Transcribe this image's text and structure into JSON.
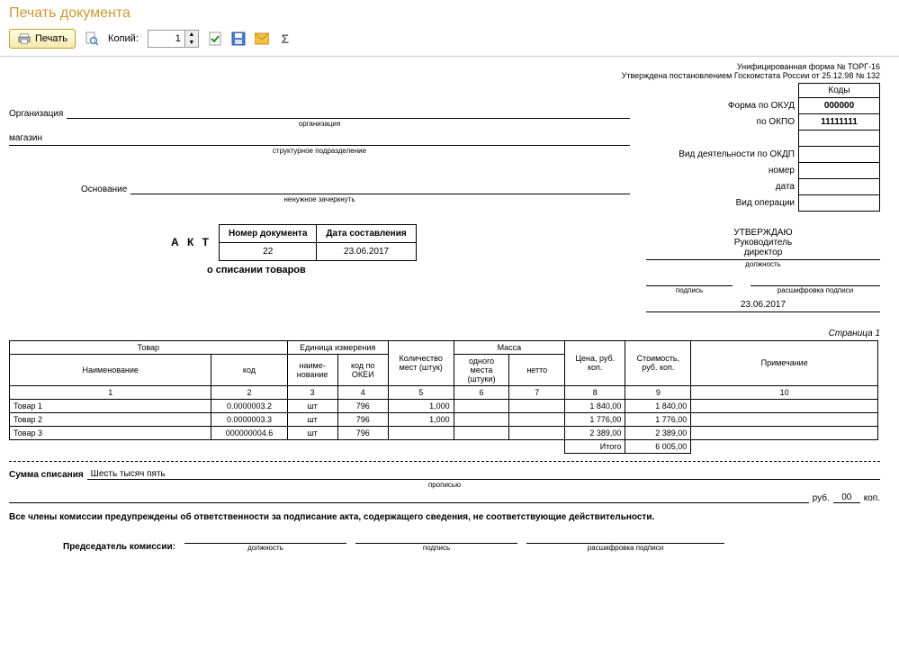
{
  "window": {
    "title": "Печать документа"
  },
  "toolbar": {
    "print_label": "Печать",
    "copies_label": "Копий:",
    "copies_value": "1"
  },
  "header": {
    "form_line1": "Унифицированная форма № ТОРГ-16",
    "form_line2": "Утверждена постановлением Госкомстата России от 25.12.98 № 132",
    "codes_header": "Коды",
    "okud_label": "Форма по ОКУД",
    "okud_value": "000000",
    "okpo_label": "по ОКПО",
    "okpo_value": "11111111",
    "okdp_label": "Вид деятельности по ОКДП",
    "okdp_value": "",
    "nomer_label": "номер",
    "nomer_value": "",
    "data_label": "дата",
    "data_value": "",
    "oper_label": "Вид операции",
    "oper_value": ""
  },
  "fields": {
    "org_label": "Организация",
    "org_value": "",
    "org_caption": "организация",
    "store_value": "магазин",
    "store_caption": "структурное подразделение",
    "basis_label": "Основание",
    "basis_value": "",
    "basis_caption": "ненужное зачеркнуть"
  },
  "approve": {
    "title": "УТВЕРЖДАЮ",
    "role": "Руководитель",
    "position": "директор",
    "pos_cap": "должность",
    "sign_cap": "подпись",
    "decode_cap": "расшифровка подписи",
    "date": "23.06.2017"
  },
  "act": {
    "title": "А К Т",
    "subtitle": "о списании товаров",
    "docnum_hdr": "Номер документа",
    "docdate_hdr": "Дата составления",
    "docnum": "22",
    "docdate": "23.06.2017"
  },
  "page_label": "Страница 1",
  "table": {
    "headers": {
      "goods": "Товар",
      "unit": "Единица измерения",
      "name": "Наименование",
      "code": "код",
      "unit_name": "наиме-\nнование",
      "okei": "код по ОКЕИ",
      "qty": "Количество мест (штук)",
      "mass": "Масса",
      "mass_one": "одного места (штуки)",
      "mass_net": "нетто",
      "price": "Цена, руб. коп.",
      "cost": "Стоимость, руб. коп.",
      "note": "Примечание"
    },
    "colnums": [
      "1",
      "2",
      "3",
      "4",
      "5",
      "6",
      "7",
      "8",
      "9",
      "10"
    ],
    "rows": [
      {
        "name": "Товар 1",
        "code": "0.0000003.2",
        "unit": "шт",
        "okei": "796",
        "qty": "1,000",
        "mass_one": "",
        "mass_net": "",
        "price": "1 840,00",
        "cost": "1 840,00",
        "note": ""
      },
      {
        "name": "Товар 2",
        "code": "0.0000003.3",
        "unit": "шт",
        "okei": "796",
        "qty": "1,000",
        "mass_one": "",
        "mass_net": "",
        "price": "1 776,00",
        "cost": "1 776,00",
        "note": ""
      },
      {
        "name": "Товар 3",
        "code": "000000004.6",
        "unit": "шт",
        "okei": "796",
        "qty": "",
        "mass_one": "",
        "mass_net": "",
        "price": "2 389,00",
        "cost": "2 389,00",
        "note": ""
      }
    ],
    "total_label": "Итого",
    "total_value": "6 005,00"
  },
  "summary": {
    "sum_label": "Сумма списания",
    "sum_words": "Шесть тысяч пять",
    "words_cap": "прописью",
    "rub_label": "руб.",
    "kop_value": "00",
    "kop_label": "коп.",
    "warning": "Все члены комиссии предупреждены об ответственности за подписание акта, содержащего сведения, не соответствующие действительности.",
    "chairman_label": "Председатель комиссии:",
    "pos_cap": "должность",
    "sign_cap": "подпись",
    "decode_cap": "расшифровка подписи"
  }
}
